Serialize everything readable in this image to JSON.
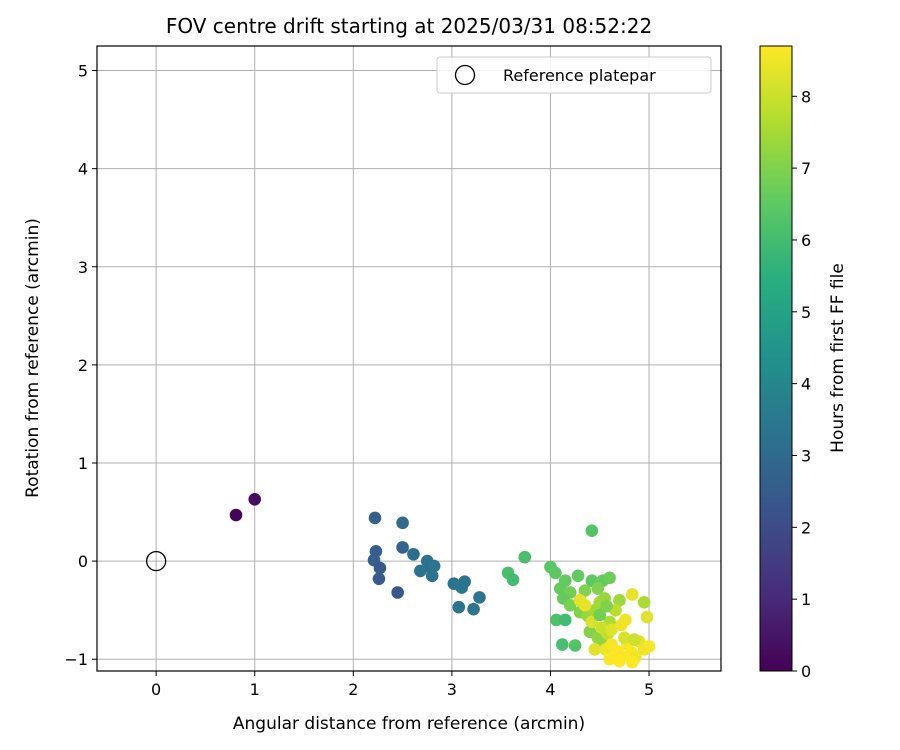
{
  "chart_data": {
    "type": "scatter",
    "title": "FOV centre drift starting at 2025/03/31 08:52:22",
    "xlabel": "Angular distance from reference (arcmin)",
    "ylabel": "Rotation from reference (arcmin)",
    "xlim": [
      -0.6,
      5.73
    ],
    "ylim": [
      -1.12,
      5.25
    ],
    "xticks": [
      0,
      1,
      2,
      3,
      4,
      5
    ],
    "yticks": [
      -1,
      0,
      1,
      2,
      3,
      4,
      5
    ],
    "grid": true,
    "legend": {
      "location": "top-right",
      "entries": [
        "Reference platepar"
      ]
    },
    "reference_point": {
      "x": 0,
      "y": 0,
      "label": "Reference platepar"
    },
    "colorbar": {
      "label": "Hours from first FF file",
      "range": [
        0,
        8.7
      ],
      "ticks": [
        0,
        1,
        2,
        3,
        4,
        5,
        6,
        7,
        8
      ],
      "colormap": "viridis"
    },
    "series": [
      {
        "points": [
          {
            "x": 0.81,
            "y": 0.47,
            "c": 0.1
          },
          {
            "x": 1.0,
            "y": 0.63,
            "c": 0.3
          },
          {
            "x": 2.22,
            "y": 0.44,
            "c": 2.6
          },
          {
            "x": 2.5,
            "y": 0.39,
            "c": 3.0
          },
          {
            "x": 2.23,
            "y": 0.1,
            "c": 2.6
          },
          {
            "x": 2.5,
            "y": 0.14,
            "c": 2.8
          },
          {
            "x": 2.21,
            "y": 0.01,
            "c": 2.6
          },
          {
            "x": 2.27,
            "y": -0.07,
            "c": 2.4
          },
          {
            "x": 2.26,
            "y": -0.18,
            "c": 2.5
          },
          {
            "x": 2.45,
            "y": -0.32,
            "c": 2.4
          },
          {
            "x": 2.61,
            "y": 0.07,
            "c": 3.1
          },
          {
            "x": 2.75,
            "y": 0.0,
            "c": 3.3
          },
          {
            "x": 2.78,
            "y": -0.06,
            "c": 3.2
          },
          {
            "x": 2.82,
            "y": -0.05,
            "c": 3.4
          },
          {
            "x": 2.68,
            "y": -0.1,
            "c": 3.3
          },
          {
            "x": 2.8,
            "y": -0.15,
            "c": 3.3
          },
          {
            "x": 3.02,
            "y": -0.23,
            "c": 3.3
          },
          {
            "x": 3.13,
            "y": -0.21,
            "c": 3.4
          },
          {
            "x": 3.1,
            "y": -0.27,
            "c": 3.4
          },
          {
            "x": 3.28,
            "y": -0.37,
            "c": 3.4
          },
          {
            "x": 3.07,
            "y": -0.47,
            "c": 3.4
          },
          {
            "x": 3.22,
            "y": -0.49,
            "c": 3.4
          },
          {
            "x": 3.57,
            "y": -0.12,
            "c": 6.1
          },
          {
            "x": 3.62,
            "y": -0.19,
            "c": 6.0
          },
          {
            "x": 3.74,
            "y": 0.04,
            "c": 6.1
          },
          {
            "x": 4.0,
            "y": -0.06,
            "c": 6.4
          },
          {
            "x": 4.05,
            "y": -0.12,
            "c": 6.5
          },
          {
            "x": 4.15,
            "y": -0.2,
            "c": 6.6
          },
          {
            "x": 4.1,
            "y": -0.28,
            "c": 6.6
          },
          {
            "x": 4.2,
            "y": -0.32,
            "c": 6.8
          },
          {
            "x": 4.13,
            "y": -0.38,
            "c": 6.6
          },
          {
            "x": 4.28,
            "y": -0.15,
            "c": 6.6
          },
          {
            "x": 4.42,
            "y": 0.31,
            "c": 6.3
          },
          {
            "x": 4.42,
            "y": -0.2,
            "c": 6.5
          },
          {
            "x": 4.53,
            "y": -0.2,
            "c": 6.6
          },
          {
            "x": 4.6,
            "y": -0.17,
            "c": 6.7
          },
          {
            "x": 4.35,
            "y": -0.3,
            "c": 7.0
          },
          {
            "x": 4.48,
            "y": -0.28,
            "c": 7.0
          },
          {
            "x": 4.2,
            "y": -0.45,
            "c": 6.9
          },
          {
            "x": 4.3,
            "y": -0.52,
            "c": 7.0
          },
          {
            "x": 4.06,
            "y": -0.6,
            "c": 6.2
          },
          {
            "x": 4.15,
            "y": -0.6,
            "c": 6.0
          },
          {
            "x": 4.12,
            "y": -0.85,
            "c": 6.1
          },
          {
            "x": 4.25,
            "y": -0.86,
            "c": 6.3
          },
          {
            "x": 4.38,
            "y": -0.56,
            "c": 7.3
          },
          {
            "x": 4.45,
            "y": -0.5,
            "c": 7.5
          },
          {
            "x": 4.5,
            "y": -0.42,
            "c": 7.5
          },
          {
            "x": 4.55,
            "y": -0.38,
            "c": 7.3
          },
          {
            "x": 4.4,
            "y": -0.72,
            "c": 7.0
          },
          {
            "x": 4.48,
            "y": -0.78,
            "c": 7.2
          },
          {
            "x": 4.55,
            "y": -0.85,
            "c": 7.2
          },
          {
            "x": 4.6,
            "y": -0.62,
            "c": 7.6
          },
          {
            "x": 4.7,
            "y": -0.4,
            "c": 7.4
          },
          {
            "x": 4.66,
            "y": -0.5,
            "c": 7.8
          },
          {
            "x": 4.3,
            "y": -0.4,
            "c": 8.3
          },
          {
            "x": 4.35,
            "y": -0.45,
            "c": 8.4
          },
          {
            "x": 4.42,
            "y": -0.62,
            "c": 8.2
          },
          {
            "x": 4.52,
            "y": -0.68,
            "c": 8.0
          },
          {
            "x": 4.58,
            "y": -0.74,
            "c": 7.9
          },
          {
            "x": 4.62,
            "y": -0.7,
            "c": 8.3
          },
          {
            "x": 4.72,
            "y": -0.65,
            "c": 8.5
          },
          {
            "x": 4.76,
            "y": -0.6,
            "c": 8.5
          },
          {
            "x": 4.83,
            "y": -0.34,
            "c": 8.4
          },
          {
            "x": 4.95,
            "y": -0.42,
            "c": 7.6
          },
          {
            "x": 4.98,
            "y": -0.57,
            "c": 8.3
          },
          {
            "x": 4.45,
            "y": -0.9,
            "c": 8.3
          },
          {
            "x": 4.56,
            "y": -0.9,
            "c": 8.5
          },
          {
            "x": 4.62,
            "y": -0.85,
            "c": 8.6
          },
          {
            "x": 4.68,
            "y": -0.92,
            "c": 8.7
          },
          {
            "x": 4.72,
            "y": -0.97,
            "c": 8.6
          },
          {
            "x": 4.78,
            "y": -0.85,
            "c": 8.6
          },
          {
            "x": 4.82,
            "y": -0.93,
            "c": 8.7
          },
          {
            "x": 4.86,
            "y": -0.98,
            "c": 8.5
          },
          {
            "x": 4.9,
            "y": -0.82,
            "c": 8.4
          },
          {
            "x": 4.95,
            "y": -0.9,
            "c": 8.5
          },
          {
            "x": 5.0,
            "y": -0.87,
            "c": 8.6
          },
          {
            "x": 4.6,
            "y": -1.0,
            "c": 8.7
          },
          {
            "x": 4.7,
            "y": -1.02,
            "c": 8.7
          },
          {
            "x": 4.83,
            "y": -1.03,
            "c": 8.7
          },
          {
            "x": 4.75,
            "y": -0.78,
            "c": 8.2
          },
          {
            "x": 4.85,
            "y": -0.8,
            "c": 8.0
          },
          {
            "x": 4.5,
            "y": -0.55,
            "c": 6.8
          },
          {
            "x": 4.57,
            "y": -0.46,
            "c": 7.0
          }
        ]
      }
    ]
  }
}
